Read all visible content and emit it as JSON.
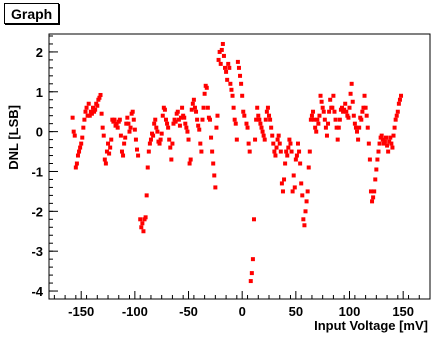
{
  "chart_data": {
    "type": "scatter",
    "title": "Graph",
    "xlabel": "Input Voltage [mV]",
    "ylabel": "DNL [LSB]",
    "xlim": [
      -180,
      175
    ],
    "ylim": [
      -4.2,
      2.45
    ],
    "x_ticks": [
      -150,
      -100,
      -50,
      0,
      50,
      100,
      150
    ],
    "y_ticks": [
      -4,
      -3,
      -2,
      -1,
      0,
      1,
      2
    ],
    "x_tick_labels": [
      "-150",
      "-100",
      "-50",
      "0",
      "50",
      "100",
      "150"
    ],
    "y_tick_labels": [
      "-4",
      "-3",
      "-2",
      "-1",
      "0",
      "1",
      "2"
    ],
    "grid": false,
    "marker_color": "#ff0000",
    "series": [
      {
        "points": [
          [
            -158,
            0.35
          ],
          [
            -157,
            0.0
          ],
          [
            -156,
            -0.1
          ],
          [
            -155,
            -0.9
          ],
          [
            -154,
            -0.8
          ],
          [
            -153,
            -0.6
          ],
          [
            -152,
            -0.5
          ],
          [
            -151,
            -0.4
          ],
          [
            -150,
            -0.3
          ],
          [
            -149,
            -0.15
          ],
          [
            -148,
            0.1
          ],
          [
            -147,
            0.3
          ],
          [
            -146,
            0.5
          ],
          [
            -145,
            0.6
          ],
          [
            -144,
            0.4
          ],
          [
            -143,
            0.7
          ],
          [
            -142,
            0.4
          ],
          [
            -141,
            0.5
          ],
          [
            -140,
            0.45
          ],
          [
            -139,
            0.6
          ],
          [
            -138,
            0.5
          ],
          [
            -137,
            0.55
          ],
          [
            -136,
            0.7
          ],
          [
            -135,
            0.65
          ],
          [
            -134,
            0.8
          ],
          [
            -133,
            0.85
          ],
          [
            -132,
            0.92
          ],
          [
            -131,
            0.45
          ],
          [
            -130,
            0.1
          ],
          [
            -129,
            -0.1
          ],
          [
            -128,
            -0.7
          ],
          [
            -127,
            -0.8
          ],
          [
            -126,
            -0.5
          ],
          [
            -125,
            -0.3
          ],
          [
            -124,
            -0.55
          ],
          [
            -123,
            -0.4
          ],
          [
            -122,
            -0.2
          ],
          [
            -121,
            0.3
          ],
          [
            -120,
            0.25
          ],
          [
            -119,
            0.3
          ],
          [
            -118,
            0.15
          ],
          [
            -117,
            0.2
          ],
          [
            -116,
            0.1
          ],
          [
            -115,
            0.25
          ],
          [
            -114,
            0.3
          ],
          [
            -113,
            -0.1
          ],
          [
            -112,
            -0.5
          ],
          [
            -111,
            -0.6
          ],
          [
            -110,
            -0.3
          ],
          [
            -109,
            -0.15
          ],
          [
            -108,
            0.2
          ],
          [
            -107,
            0.35
          ],
          [
            -106,
            0.2
          ],
          [
            -105,
            0.0
          ],
          [
            -104,
            0.1
          ],
          [
            -103,
            0.45
          ],
          [
            -102,
            0.5
          ],
          [
            -101,
            0.3
          ],
          [
            -100,
            0.05
          ],
          [
            -99,
            -0.2
          ],
          [
            -98,
            -0.45
          ],
          [
            -97,
            -0.6
          ],
          [
            -95,
            -2.2
          ],
          [
            -94,
            -2.4
          ],
          [
            -93,
            -2.3
          ],
          [
            -92,
            -2.5
          ],
          [
            -91,
            -2.2
          ],
          [
            -90,
            -2.15
          ],
          [
            -89,
            -1.6
          ],
          [
            -88,
            -0.9
          ],
          [
            -87,
            -0.5
          ],
          [
            -86,
            -0.3
          ],
          [
            -85,
            -0.2
          ],
          [
            -84,
            -0.05
          ],
          [
            -83,
            -0.1
          ],
          [
            -82,
            0.2
          ],
          [
            -81,
            0.3
          ],
          [
            -80,
            0.1
          ],
          [
            -79,
            0.0
          ],
          [
            -78,
            -0.25
          ],
          [
            -77,
            -0.3
          ],
          [
            -76,
            -0.2
          ],
          [
            -75,
            -0.05
          ],
          [
            -74,
            0.4
          ],
          [
            -73,
            0.6
          ],
          [
            -72,
            0.55
          ],
          [
            -71,
            0.3
          ],
          [
            -70,
            0.2
          ],
          [
            -69,
            0.1
          ],
          [
            -68,
            -0.2
          ],
          [
            -67,
            -0.4
          ],
          [
            -66,
            -0.7
          ],
          [
            -65,
            -0.3
          ],
          [
            -64,
            0.2
          ],
          [
            -63,
            0.3
          ],
          [
            -62,
            0.25
          ],
          [
            -61,
            0.45
          ],
          [
            -60,
            0.5
          ],
          [
            -59,
            0.3
          ],
          [
            -58,
            0.15
          ],
          [
            -57,
            0.35
          ],
          [
            -56,
            0.6
          ],
          [
            -55,
            0.4
          ],
          [
            -54,
            0.35
          ],
          [
            -53,
            0.2
          ],
          [
            -52,
            0.1
          ],
          [
            -51,
            0.0
          ],
          [
            -50,
            -0.2
          ],
          [
            -49,
            -0.8
          ],
          [
            -48,
            -0.7
          ],
          [
            -47,
            0.55
          ],
          [
            -46,
            0.7
          ],
          [
            -45,
            0.8
          ],
          [
            -44,
            0.6
          ],
          [
            -43,
            0.5
          ],
          [
            -42,
            0.3
          ],
          [
            -41,
            0.15
          ],
          [
            -40,
            0.05
          ],
          [
            -39,
            -0.3
          ],
          [
            -38,
            -0.5
          ],
          [
            -37,
            0.3
          ],
          [
            -36,
            0.6
          ],
          [
            -35,
            0.95
          ],
          [
            -34,
            1.15
          ],
          [
            -33,
            1.1
          ],
          [
            -32,
            0.6
          ],
          [
            -31,
            0.35
          ],
          [
            -30,
            0.3
          ],
          [
            -29,
            -0.15
          ],
          [
            -28,
            -0.5
          ],
          [
            -27,
            -0.8
          ],
          [
            -26,
            -1.1
          ],
          [
            -25,
            -1.4
          ],
          [
            -24,
            0.1
          ],
          [
            -23,
            0.4
          ],
          [
            -22,
            1.8
          ],
          [
            -21,
            2.0
          ],
          [
            -20,
            1.7
          ],
          [
            -19,
            2.05
          ],
          [
            -18,
            2.2
          ],
          [
            -17,
            1.9
          ],
          [
            -16,
            1.6
          ],
          [
            -15,
            1.5
          ],
          [
            -14,
            1.3
          ],
          [
            -13,
            1.7
          ],
          [
            -12,
            1.6
          ],
          [
            -11,
            1.2
          ],
          [
            -10,
            1.05
          ],
          [
            -9,
            0.9
          ],
          [
            -8,
            0.6
          ],
          [
            -7,
            0.3
          ],
          [
            -6,
            0.2
          ],
          [
            -5,
            -0.2
          ],
          [
            -4,
            1.75
          ],
          [
            -3,
            1.6
          ],
          [
            -2,
            1.4
          ],
          [
            -1,
            1.2
          ],
          [
            0,
            0.9
          ],
          [
            1,
            0.5
          ],
          [
            2,
            0.4
          ],
          [
            4,
            0.2
          ],
          [
            5,
            0.1
          ],
          [
            6,
            -0.3
          ],
          [
            7,
            -0.5
          ],
          [
            8,
            -3.75
          ],
          [
            9,
            -3.55
          ],
          [
            10,
            -3.2
          ],
          [
            11,
            -2.2
          ],
          [
            12,
            -0.2
          ],
          [
            13,
            0.3
          ],
          [
            14,
            0.6
          ],
          [
            15,
            0.4
          ],
          [
            16,
            0.3
          ],
          [
            17,
            0.2
          ],
          [
            18,
            0.1
          ],
          [
            19,
            0.0
          ],
          [
            20,
            -0.1
          ],
          [
            21,
            -0.2
          ],
          [
            22,
            0.3
          ],
          [
            23,
            0.5
          ],
          [
            24,
            0.6
          ],
          [
            25,
            0.4
          ],
          [
            26,
            0.3
          ],
          [
            27,
            0.1
          ],
          [
            28,
            -0.1
          ],
          [
            29,
            -0.3
          ],
          [
            30,
            -0.5
          ],
          [
            31,
            -0.6
          ],
          [
            32,
            -0.4
          ],
          [
            33,
            -0.2
          ],
          [
            34,
            -0.1
          ],
          [
            35,
            -0.3
          ],
          [
            36,
            -0.5
          ],
          [
            37,
            -1.3
          ],
          [
            38,
            -1.5
          ],
          [
            39,
            -1.2
          ],
          [
            40,
            -0.8
          ],
          [
            41,
            -0.5
          ],
          [
            42,
            -0.6
          ],
          [
            43,
            -0.4
          ],
          [
            44,
            -0.2
          ],
          [
            45,
            -0.3
          ],
          [
            46,
            -0.5
          ],
          [
            47,
            -1.5
          ],
          [
            48,
            -1.1
          ],
          [
            49,
            -1.4
          ],
          [
            50,
            -0.7
          ],
          [
            51,
            -0.6
          ],
          [
            52,
            -0.3
          ],
          [
            53,
            -0.5
          ],
          [
            54,
            -0.8
          ],
          [
            55,
            -1.3
          ],
          [
            56,
            -1.6
          ],
          [
            57,
            -2.2
          ],
          [
            58,
            -2.35
          ],
          [
            59,
            -2.0
          ],
          [
            60,
            -1.75
          ],
          [
            61,
            -1.5
          ],
          [
            62,
            -0.9
          ],
          [
            63,
            -0.5
          ],
          [
            64,
            0.3
          ],
          [
            65,
            0.4
          ],
          [
            66,
            0.5
          ],
          [
            67,
            0.3
          ],
          [
            68,
            0.1
          ],
          [
            69,
            0.0
          ],
          [
            70,
            0.3
          ],
          [
            71,
            0.2
          ],
          [
            72,
            0.4
          ],
          [
            73,
            0.9
          ],
          [
            74,
            0.75
          ],
          [
            75,
            0.6
          ],
          [
            76,
            0.5
          ],
          [
            77,
            0.3
          ],
          [
            78,
            0.1
          ],
          [
            79,
            -0.1
          ],
          [
            80,
            0.2
          ],
          [
            81,
            0.5
          ],
          [
            82,
            0.8
          ],
          [
            83,
            0.6
          ],
          [
            84,
            0.6
          ],
          [
            85,
            0.9
          ],
          [
            86,
            0.5
          ],
          [
            87,
            0.3
          ],
          [
            88,
            0.1
          ],
          [
            89,
            -0.2
          ],
          [
            90,
            0.1
          ],
          [
            91,
            0.3
          ],
          [
            92,
            0.55
          ],
          [
            93,
            0.6
          ],
          [
            94,
            0.5
          ],
          [
            95,
            0.55
          ],
          [
            96,
            0.7
          ],
          [
            97,
            0.5
          ],
          [
            98,
            0.4
          ],
          [
            99,
            0.35
          ],
          [
            100,
            0.6
          ],
          [
            101,
            0.95
          ],
          [
            102,
            1.2
          ],
          [
            103,
            0.75
          ],
          [
            104,
            0.4
          ],
          [
            105,
            0.2
          ],
          [
            106,
            0.1
          ],
          [
            107,
            0.0
          ],
          [
            108,
            -0.2
          ],
          [
            109,
            0.1
          ],
          [
            110,
            0.35
          ],
          [
            111,
            0.3
          ],
          [
            112,
            0.5
          ],
          [
            113,
            0.6
          ],
          [
            114,
            0.9
          ],
          [
            115,
            0.6
          ],
          [
            116,
            0.4
          ],
          [
            117,
            0.1
          ],
          [
            118,
            -0.3
          ],
          [
            119,
            -0.7
          ],
          [
            120,
            -1.5
          ],
          [
            121,
            -1.75
          ],
          [
            122,
            -1.65
          ],
          [
            123,
            -1.5
          ],
          [
            124,
            -1.2
          ],
          [
            125,
            -0.95
          ],
          [
            126,
            -0.7
          ],
          [
            127,
            -0.5
          ],
          [
            128,
            -0.3
          ],
          [
            129,
            -0.15
          ],
          [
            130,
            -0.1
          ],
          [
            131,
            -0.2
          ],
          [
            132,
            -0.3
          ],
          [
            133,
            -0.25
          ],
          [
            134,
            -0.15
          ],
          [
            135,
            -0.35
          ],
          [
            136,
            -0.5
          ],
          [
            137,
            -0.25
          ],
          [
            138,
            -0.15
          ],
          [
            139,
            -0.3
          ],
          [
            140,
            -0.4
          ],
          [
            141,
            -0.1
          ],
          [
            142,
            0.1
          ],
          [
            143,
            0.3
          ],
          [
            144,
            0.4
          ],
          [
            145,
            0.5
          ],
          [
            146,
            0.7
          ],
          [
            147,
            0.8
          ],
          [
            148,
            0.9
          ]
        ]
      }
    ]
  }
}
